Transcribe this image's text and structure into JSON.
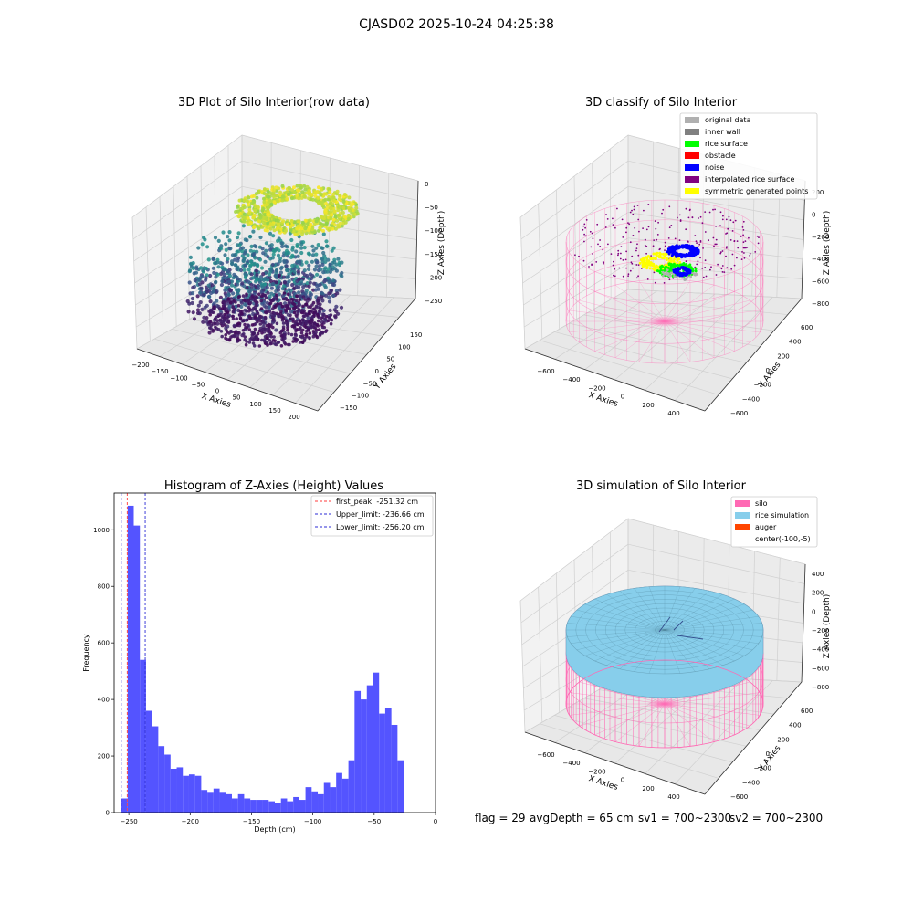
{
  "figure": {
    "suptitle": "CJASD02 2025-10-24 04:25:38",
    "footer": {
      "flag": "flag = 29",
      "avg_depth": "avgDepth = 65 cm",
      "sv1": "sv1 = 700~2300",
      "sv2": "sv2 = 700~2300"
    }
  },
  "colors": {
    "hist_bar": "#4b4bff",
    "first_peak": "#ff3b3b",
    "limits": "#2b2bd6",
    "silo": "#ff69b4",
    "rice_simulation": "#87ceeb",
    "auger": "#ff4500",
    "original_data": "#b0b0b0",
    "inner_wall": "#808080",
    "rice_surface": "#00ff00",
    "obstacle": "#ff0000",
    "noise": "#0000ff",
    "interpolated_rice_surface": "#800080",
    "symmetric_generated_points": "#ffff00"
  },
  "chart_data": [
    {
      "type": "scatter",
      "projection": "3d",
      "title": "3D Plot of Silo Interior(row data)",
      "xlabel": "X Axies",
      "ylabel": "Y Axies",
      "zlabel": "Z Axies (Depth)",
      "xticks": [
        "−200",
        "−150",
        "−100",
        "−50",
        "0",
        "50",
        "100",
        "150",
        "200"
      ],
      "yticks": [
        "−150",
        "−100",
        "−50",
        "0",
        "50",
        "100",
        "150"
      ],
      "zticks": [
        "0",
        "−50",
        "−100",
        "−150",
        "−200",
        "−250"
      ],
      "colormap": "viridis",
      "note_values": "point cloud ring shape: depth ~ -10 at top ring to ~ -260 at bottom"
    },
    {
      "type": "scatter",
      "projection": "3d",
      "title": "3D classify of Silo Interior",
      "xlabel": "X Axies",
      "ylabel": "Y Axies",
      "zlabel": "Z Axies (Depth)",
      "xticks": [
        "−600",
        "−400",
        "−200",
        "0",
        "200",
        "400"
      ],
      "yticks": [
        "600",
        "400",
        "200",
        "0",
        "−200",
        "−400",
        "−600"
      ],
      "zticks": [
        "200",
        "0",
        "−200",
        "−400",
        "−600",
        "−800"
      ],
      "legend_position": "upper right",
      "legend": [
        {
          "label": "original data",
          "color": "#b0b0b0"
        },
        {
          "label": "inner wall",
          "color": "#808080"
        },
        {
          "label": "rice surface",
          "color": "#00ff00"
        },
        {
          "label": "obstacle",
          "color": "#ff0000"
        },
        {
          "label": "noise",
          "color": "#0000ff"
        },
        {
          "label": "interpolated rice surface",
          "color": "#800080"
        },
        {
          "label": "symmetric generated points",
          "color": "#ffff00"
        }
      ]
    },
    {
      "type": "bar",
      "title": "Histogram of Z-Axies (Height) Values",
      "xlabel": "Depth (cm)",
      "ylabel": "Frequency",
      "xlim": [
        -262,
        0
      ],
      "ylim": [
        0,
        1130
      ],
      "xticks": [
        -250,
        -200,
        -150,
        -100,
        -50,
        0
      ],
      "xtick_labels": [
        "−250",
        "−200",
        "−150",
        "−100",
        "−50",
        "0"
      ],
      "yticks": [
        0,
        200,
        400,
        600,
        800,
        1000
      ],
      "bin_start": -256,
      "bin_width": 5,
      "values": [
        50,
        1085,
        1015,
        540,
        360,
        305,
        235,
        205,
        155,
        160,
        130,
        135,
        130,
        80,
        70,
        85,
        70,
        65,
        50,
        65,
        50,
        45,
        45,
        45,
        40,
        35,
        50,
        40,
        55,
        45,
        90,
        75,
        65,
        105,
        90,
        140,
        120,
        185,
        430,
        400,
        450,
        495,
        350,
        370,
        310,
        185
      ],
      "vlines": [
        {
          "x": -251.32,
          "label": "first_peak: -251.32 cm",
          "color": "#ff3b3b"
        },
        {
          "x": -236.66,
          "label": "Upper_limit: -236.66 cm",
          "color": "#2b2bd6"
        },
        {
          "x": -256.2,
          "label": "Lower_limit: -256.20 cm",
          "color": "#2b2bd6"
        }
      ],
      "legend_position": "upper right"
    },
    {
      "type": "surface",
      "projection": "3d",
      "title": "3D simulation of Silo Interior",
      "xlabel": "X Axies",
      "ylabel": "Y Axies",
      "zlabel": "Z Axies (Depth)",
      "xticks": [
        "−600",
        "−400",
        "−200",
        "0",
        "200",
        "400"
      ],
      "yticks": [
        "600",
        "400",
        "200",
        "0",
        "−200",
        "−400",
        "−600"
      ],
      "zticks": [
        "400",
        "200",
        "0",
        "−200",
        "−400",
        "−600",
        "−800"
      ],
      "legend_position": "upper right",
      "legend": [
        {
          "label": "silo",
          "color": "#ff69b4"
        },
        {
          "label": "rice simulation",
          "color": "#87ceeb"
        },
        {
          "label": "auger",
          "color": "#ff4500"
        },
        {
          "label": "center(-100,-5)",
          "color": ""
        }
      ]
    }
  ]
}
